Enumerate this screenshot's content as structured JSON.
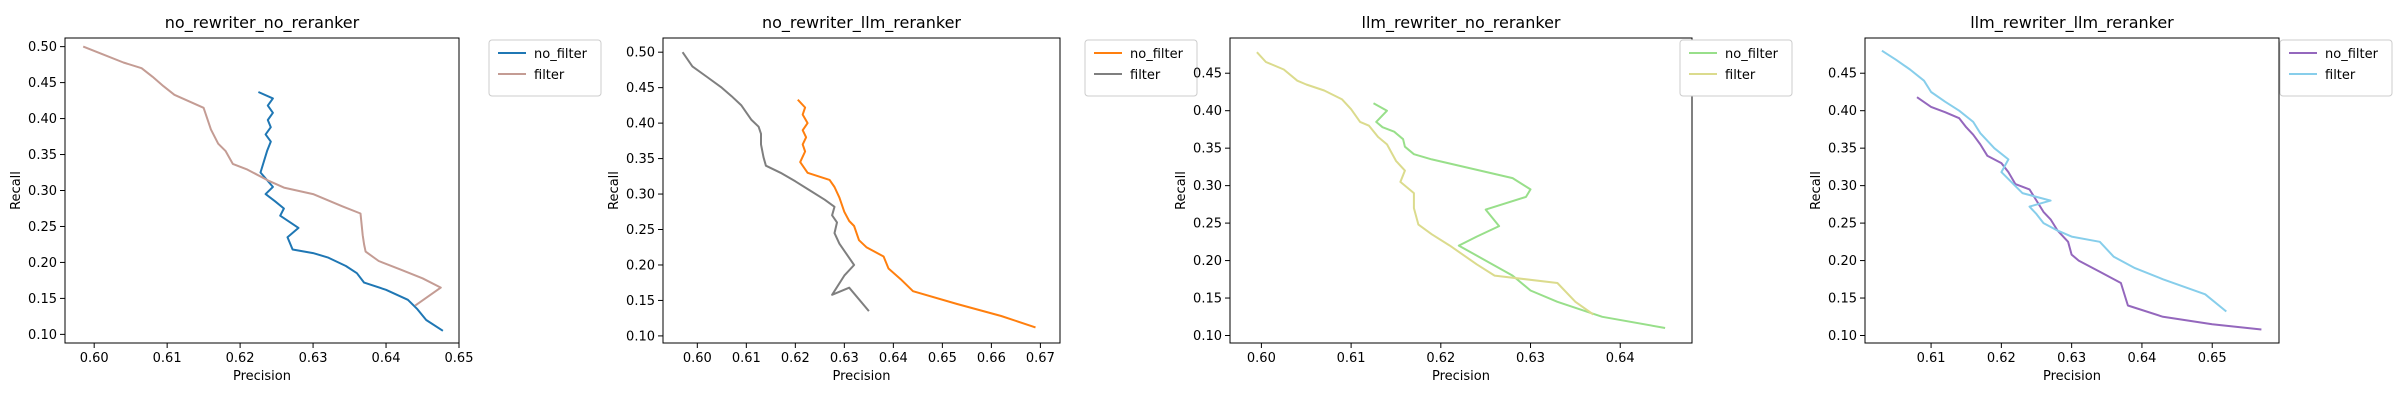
{
  "chart_data": [
    {
      "type": "line",
      "title": "no_rewriter_no_reranker",
      "xlabel": "Precision",
      "ylabel": "Recall",
      "xlim": [
        0.596,
        0.65
      ],
      "ylim": [
        0.088,
        0.512
      ],
      "xticks": [
        0.6,
        0.61,
        0.62,
        0.63,
        0.64,
        0.65
      ],
      "xtick_labels": [
        "0.60",
        "0.61",
        "0.62",
        "0.63",
        "0.64",
        "0.65"
      ],
      "yticks": [
        0.1,
        0.15,
        0.2,
        0.25,
        0.3,
        0.35,
        0.4,
        0.45,
        0.5
      ],
      "ytick_labels": [
        "0.10",
        "0.15",
        "0.20",
        "0.25",
        "0.30",
        "0.35",
        "0.40",
        "0.45",
        "0.50"
      ],
      "grid": false,
      "legend_position": "outside-top-right",
      "series": [
        {
          "name": "no_filter",
          "color": "#1f77b4",
          "x": [
            0.6225,
            0.6245,
            0.6238,
            0.6245,
            0.6238,
            0.6242,
            0.6235,
            0.6242,
            0.6237,
            0.6228,
            0.6245,
            0.6235,
            0.6248,
            0.626,
            0.6255,
            0.628,
            0.6265,
            0.6272,
            0.63,
            0.632,
            0.6345,
            0.636,
            0.637,
            0.64,
            0.643,
            0.6443,
            0.6455,
            0.6478
          ],
          "y": [
            0.437,
            0.428,
            0.418,
            0.408,
            0.398,
            0.388,
            0.378,
            0.368,
            0.355,
            0.325,
            0.305,
            0.295,
            0.285,
            0.275,
            0.265,
            0.248,
            0.235,
            0.218,
            0.213,
            0.207,
            0.195,
            0.185,
            0.172,
            0.162,
            0.148,
            0.135,
            0.12,
            0.105
          ]
        },
        {
          "name": "filter",
          "color": "#c49c94",
          "x": [
            0.5985,
            0.601,
            0.604,
            0.6065,
            0.608,
            0.6095,
            0.611,
            0.613,
            0.615,
            0.616,
            0.617,
            0.618,
            0.619,
            0.621,
            0.624,
            0.626,
            0.63,
            0.634,
            0.6365,
            0.6368,
            0.637,
            0.6372,
            0.639,
            0.642,
            0.645,
            0.6475,
            0.644
          ],
          "y": [
            0.5,
            0.49,
            0.478,
            0.47,
            0.458,
            0.445,
            0.433,
            0.424,
            0.415,
            0.385,
            0.365,
            0.355,
            0.337,
            0.329,
            0.313,
            0.304,
            0.295,
            0.278,
            0.268,
            0.238,
            0.225,
            0.215,
            0.202,
            0.19,
            0.178,
            0.165,
            0.14
          ]
        }
      ]
    },
    {
      "type": "line",
      "title": "no_rewriter_llm_reranker",
      "xlabel": "Precision",
      "ylabel": "Recall",
      "xlim": [
        0.593,
        0.674
      ],
      "ylim": [
        0.09,
        0.52
      ],
      "xticks": [
        0.6,
        0.61,
        0.62,
        0.63,
        0.64,
        0.65,
        0.66,
        0.67
      ],
      "xtick_labels": [
        "0.60",
        "0.61",
        "0.62",
        "0.63",
        "0.64",
        "0.65",
        "0.66",
        "0.67"
      ],
      "yticks": [
        0.1,
        0.15,
        0.2,
        0.25,
        0.3,
        0.35,
        0.4,
        0.45,
        0.5
      ],
      "ytick_labels": [
        "0.10",
        "0.15",
        "0.20",
        "0.25",
        "0.30",
        "0.35",
        "0.40",
        "0.45",
        "0.50"
      ],
      "grid": false,
      "legend_position": "outside-top-right",
      "series": [
        {
          "name": "no_filter",
          "color": "#ff7f0e",
          "x": [
            0.6205,
            0.622,
            0.6215,
            0.6225,
            0.6215,
            0.6222,
            0.6215,
            0.622,
            0.621,
            0.6225,
            0.627,
            0.628,
            0.629,
            0.63,
            0.631,
            0.632,
            0.633,
            0.6345,
            0.638,
            0.639,
            0.6415,
            0.644,
            0.653,
            0.662,
            0.669
          ],
          "y": [
            0.433,
            0.422,
            0.412,
            0.4,
            0.39,
            0.38,
            0.37,
            0.36,
            0.345,
            0.33,
            0.32,
            0.31,
            0.295,
            0.275,
            0.262,
            0.255,
            0.235,
            0.225,
            0.212,
            0.195,
            0.18,
            0.163,
            0.145,
            0.128,
            0.112
          ]
        },
        {
          "name": "filter",
          "color": "#7f7f7f",
          "x": [
            0.597,
            0.599,
            0.602,
            0.605,
            0.607,
            0.609,
            0.611,
            0.6125,
            0.613,
            0.613,
            0.6135,
            0.614,
            0.617,
            0.62,
            0.623,
            0.626,
            0.628,
            0.6275,
            0.6285,
            0.628,
            0.629,
            0.632,
            0.63,
            0.6275,
            0.631,
            0.635
          ],
          "y": [
            0.5,
            0.48,
            0.465,
            0.45,
            0.438,
            0.425,
            0.405,
            0.395,
            0.385,
            0.37,
            0.352,
            0.34,
            0.33,
            0.318,
            0.305,
            0.292,
            0.282,
            0.27,
            0.26,
            0.245,
            0.23,
            0.2,
            0.185,
            0.158,
            0.168,
            0.135
          ]
        }
      ]
    },
    {
      "type": "line",
      "title": "llm_rewriter_no_reranker",
      "xlabel": "Precision",
      "ylabel": "Recall",
      "xlim": [
        0.5965,
        0.648
      ],
      "ylim": [
        0.09,
        0.497
      ],
      "xticks": [
        0.6,
        0.61,
        0.62,
        0.63,
        0.64
      ],
      "xtick_labels": [
        "0.60",
        "0.61",
        "0.62",
        "0.63",
        "0.64"
      ],
      "yticks": [
        0.1,
        0.15,
        0.2,
        0.25,
        0.3,
        0.35,
        0.4,
        0.45
      ],
      "ytick_labels": [
        "0.10",
        "0.15",
        "0.20",
        "0.25",
        "0.30",
        "0.35",
        "0.40",
        "0.45"
      ],
      "grid": false,
      "legend_position": "outside-top-right",
      "series": [
        {
          "name": "no_filter",
          "color": "#98df8a",
          "x": [
            0.6125,
            0.614,
            0.6128,
            0.6135,
            0.6148,
            0.6158,
            0.616,
            0.617,
            0.619,
            0.628,
            0.63,
            0.6295,
            0.625,
            0.6265,
            0.624,
            0.622,
            0.625,
            0.628,
            0.63,
            0.633,
            0.638,
            0.645
          ],
          "y": [
            0.41,
            0.4,
            0.385,
            0.378,
            0.372,
            0.362,
            0.352,
            0.342,
            0.335,
            0.31,
            0.295,
            0.285,
            0.268,
            0.246,
            0.232,
            0.22,
            0.2,
            0.18,
            0.16,
            0.145,
            0.125,
            0.11
          ]
        },
        {
          "name": "filter",
          "color": "#dbdb8d",
          "x": [
            0.5995,
            0.6005,
            0.6025,
            0.604,
            0.605,
            0.607,
            0.609,
            0.61,
            0.611,
            0.612,
            0.613,
            0.614,
            0.615,
            0.616,
            0.6155,
            0.617,
            0.617,
            0.6175,
            0.619,
            0.621,
            0.624,
            0.626,
            0.633,
            0.635,
            0.637
          ],
          "y": [
            0.478,
            0.465,
            0.455,
            0.44,
            0.435,
            0.427,
            0.415,
            0.402,
            0.385,
            0.38,
            0.365,
            0.355,
            0.333,
            0.32,
            0.305,
            0.29,
            0.27,
            0.248,
            0.235,
            0.22,
            0.195,
            0.18,
            0.17,
            0.145,
            0.128
          ]
        }
      ]
    },
    {
      "type": "line",
      "title": "llm_rewriter_llm_reranker",
      "xlabel": "Precision",
      "ylabel": "Recall",
      "xlim": [
        0.6006,
        0.6595
      ],
      "ylim": [
        0.09,
        0.497
      ],
      "xticks": [
        0.61,
        0.62,
        0.63,
        0.64,
        0.65
      ],
      "xtick_labels": [
        "0.61",
        "0.62",
        "0.63",
        "0.64",
        "0.65"
      ],
      "yticks": [
        0.1,
        0.15,
        0.2,
        0.25,
        0.3,
        0.35,
        0.4,
        0.45
      ],
      "ytick_labels": [
        "0.10",
        "0.15",
        "0.20",
        "0.25",
        "0.30",
        "0.35",
        "0.40",
        "0.45"
      ],
      "grid": false,
      "legend_position": "outside-top-right",
      "series": [
        {
          "name": "no_filter",
          "color": "#9467bd",
          "x": [
            0.608,
            0.61,
            0.612,
            0.614,
            0.615,
            0.616,
            0.617,
            0.618,
            0.62,
            0.621,
            0.622,
            0.624,
            0.625,
            0.626,
            0.627,
            0.628,
            0.6295,
            0.63,
            0.631,
            0.634,
            0.637,
            0.638,
            0.643,
            0.65,
            0.657
          ],
          "y": [
            0.418,
            0.405,
            0.398,
            0.39,
            0.378,
            0.368,
            0.355,
            0.34,
            0.33,
            0.318,
            0.302,
            0.295,
            0.28,
            0.265,
            0.255,
            0.24,
            0.225,
            0.208,
            0.2,
            0.185,
            0.17,
            0.14,
            0.125,
            0.115,
            0.108
          ]
        },
        {
          "name": "filter",
          "color": "#87ceeb",
          "x": [
            0.603,
            0.605,
            0.607,
            0.609,
            0.61,
            0.612,
            0.614,
            0.616,
            0.617,
            0.619,
            0.621,
            0.62,
            0.623,
            0.627,
            0.624,
            0.625,
            0.626,
            0.628,
            0.63,
            0.634,
            0.636,
            0.639,
            0.643,
            0.649,
            0.652
          ],
          "y": [
            0.48,
            0.468,
            0.455,
            0.44,
            0.425,
            0.412,
            0.4,
            0.385,
            0.37,
            0.35,
            0.335,
            0.318,
            0.29,
            0.28,
            0.272,
            0.262,
            0.25,
            0.24,
            0.232,
            0.225,
            0.205,
            0.19,
            0.175,
            0.155,
            0.132
          ]
        }
      ]
    }
  ]
}
